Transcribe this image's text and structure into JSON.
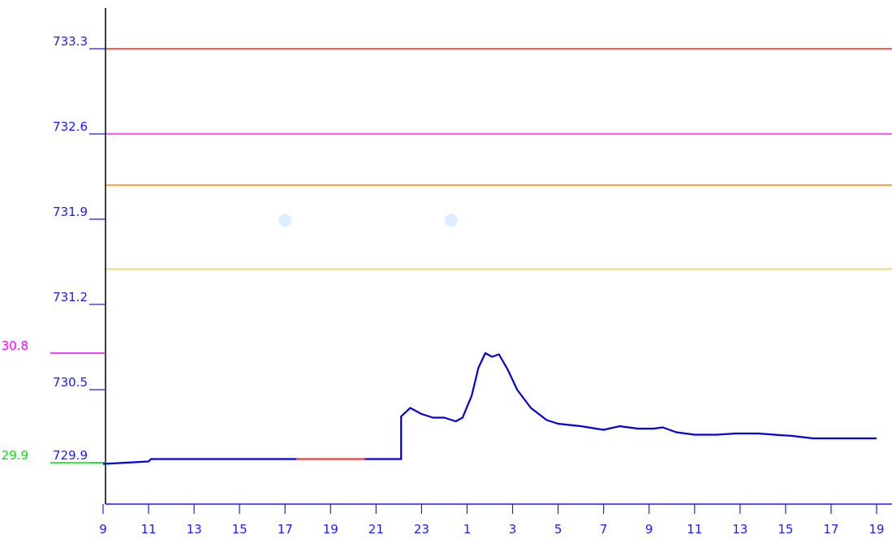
{
  "chart_data": {
    "type": "line",
    "title": "",
    "xlabel": "",
    "ylabel": "",
    "x_tick_labels": [
      "9",
      "11",
      "13",
      "15",
      "17",
      "19",
      "21",
      "23",
      "1",
      "3",
      "5",
      "7",
      "9",
      "11",
      "13",
      "15",
      "17",
      "19"
    ],
    "y_ticks": [
      {
        "label": "733.3",
        "value": 733.3
      },
      {
        "label": "732.6",
        "value": 732.6
      },
      {
        "label": "731.9",
        "value": 731.9
      },
      {
        "label": "731.2",
        "value": 731.2
      },
      {
        "label": "730.5",
        "value": 730.5
      },
      {
        "label": "729.9",
        "value": 729.9
      }
    ],
    "ylim": [
      729.9,
      733.3
    ],
    "xlim": [
      9,
      43
    ],
    "reference_lines": [
      {
        "value": 733.3,
        "color": "#ff2020"
      },
      {
        "value": 732.6,
        "color": "#ff20ff"
      },
      {
        "value": 732.18,
        "color": "#ff8c00"
      },
      {
        "value": 731.49,
        "color": "#ffd700"
      }
    ],
    "left_markers": [
      {
        "label": "30.8",
        "value": 730.8,
        "color": "#ff00ff"
      },
      {
        "label": "29.9",
        "value": 729.9,
        "color": "#00e000"
      }
    ],
    "series": [
      {
        "color": "#0000dd",
        "gap_color": "#ff2020",
        "points": [
          [
            9.0,
            729.89
          ],
          [
            10.0,
            729.9
          ],
          [
            11.0,
            729.91
          ],
          [
            11.1,
            729.93
          ],
          [
            12.0,
            729.93
          ],
          [
            14.0,
            729.93
          ],
          [
            16.0,
            729.93
          ],
          [
            17.5,
            729.93
          ],
          [
            null,
            null
          ],
          [
            20.5,
            729.93
          ],
          [
            22.1,
            729.93
          ],
          [
            22.1,
            730.28
          ],
          [
            22.5,
            730.35
          ],
          [
            23.0,
            730.3
          ],
          [
            23.5,
            730.27
          ],
          [
            24.0,
            730.27
          ],
          [
            24.5,
            730.24
          ],
          [
            24.8,
            730.27
          ],
          [
            25.2,
            730.45
          ],
          [
            25.5,
            730.68
          ],
          [
            25.8,
            730.8
          ],
          [
            26.1,
            730.77
          ],
          [
            26.4,
            730.79
          ],
          [
            26.8,
            730.66
          ],
          [
            27.2,
            730.5
          ],
          [
            27.8,
            730.35
          ],
          [
            28.5,
            730.25
          ],
          [
            29.0,
            730.22
          ],
          [
            30.0,
            730.2
          ],
          [
            31.0,
            730.17
          ],
          [
            31.7,
            730.2
          ],
          [
            32.5,
            730.18
          ],
          [
            33.2,
            730.18
          ],
          [
            33.6,
            730.19
          ],
          [
            34.2,
            730.15
          ],
          [
            35.0,
            730.13
          ],
          [
            36.0,
            730.13
          ],
          [
            36.8,
            730.14
          ],
          [
            37.8,
            730.14
          ],
          [
            38.5,
            730.13
          ],
          [
            39.3,
            730.12
          ],
          [
            40.2,
            730.1
          ],
          [
            41.0,
            730.1
          ],
          [
            42.0,
            730.1
          ],
          [
            43.0,
            730.1
          ]
        ]
      }
    ],
    "markers": [
      {
        "x": 17.0,
        "y": 731.89,
        "color": "#dbeeff"
      },
      {
        "x": 24.3,
        "y": 731.89,
        "color": "#dbeeff"
      }
    ]
  }
}
